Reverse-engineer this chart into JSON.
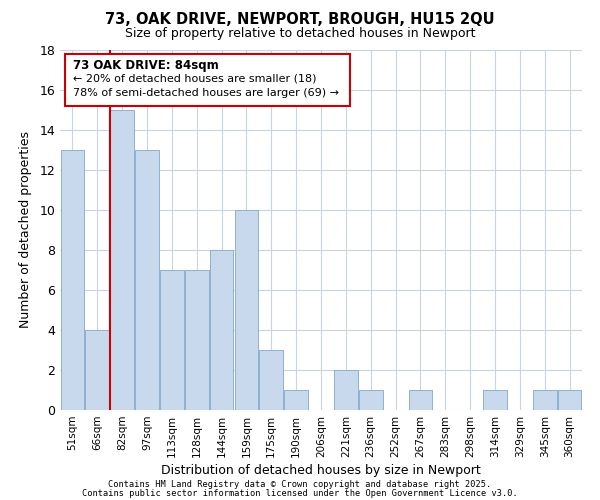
{
  "title": "73, OAK DRIVE, NEWPORT, BROUGH, HU15 2QU",
  "subtitle": "Size of property relative to detached houses in Newport",
  "xlabel": "Distribution of detached houses by size in Newport",
  "ylabel": "Number of detached properties",
  "bin_labels": [
    "51sqm",
    "66sqm",
    "82sqm",
    "97sqm",
    "113sqm",
    "128sqm",
    "144sqm",
    "159sqm",
    "175sqm",
    "190sqm",
    "206sqm",
    "221sqm",
    "236sqm",
    "252sqm",
    "267sqm",
    "283sqm",
    "298sqm",
    "314sqm",
    "329sqm",
    "345sqm",
    "360sqm"
  ],
  "counts": [
    13,
    4,
    15,
    13,
    7,
    7,
    8,
    10,
    3,
    1,
    0,
    2,
    1,
    0,
    1,
    0,
    0,
    1,
    0,
    1,
    1
  ],
  "bar_color": "#c8d9ee",
  "bar_edge_color": "#8fb0d0",
  "marker_line_index": 2,
  "marker_label": "73 OAK DRIVE: 84sqm",
  "arrow_left_text": "← 20% of detached houses are smaller (18)",
  "arrow_right_text": "78% of semi-detached houses are larger (69) →",
  "annotation_box_color": "#ffffff",
  "annotation_box_edge": "#cc0000",
  "marker_line_color": "#cc0000",
  "ylim": [
    0,
    18
  ],
  "yticks": [
    0,
    2,
    4,
    6,
    8,
    10,
    12,
    14,
    16,
    18
  ],
  "footer1": "Contains HM Land Registry data © Crown copyright and database right 2025.",
  "footer2": "Contains public sector information licensed under the Open Government Licence v3.0.",
  "background_color": "#ffffff",
  "grid_color": "#c8d4e0"
}
